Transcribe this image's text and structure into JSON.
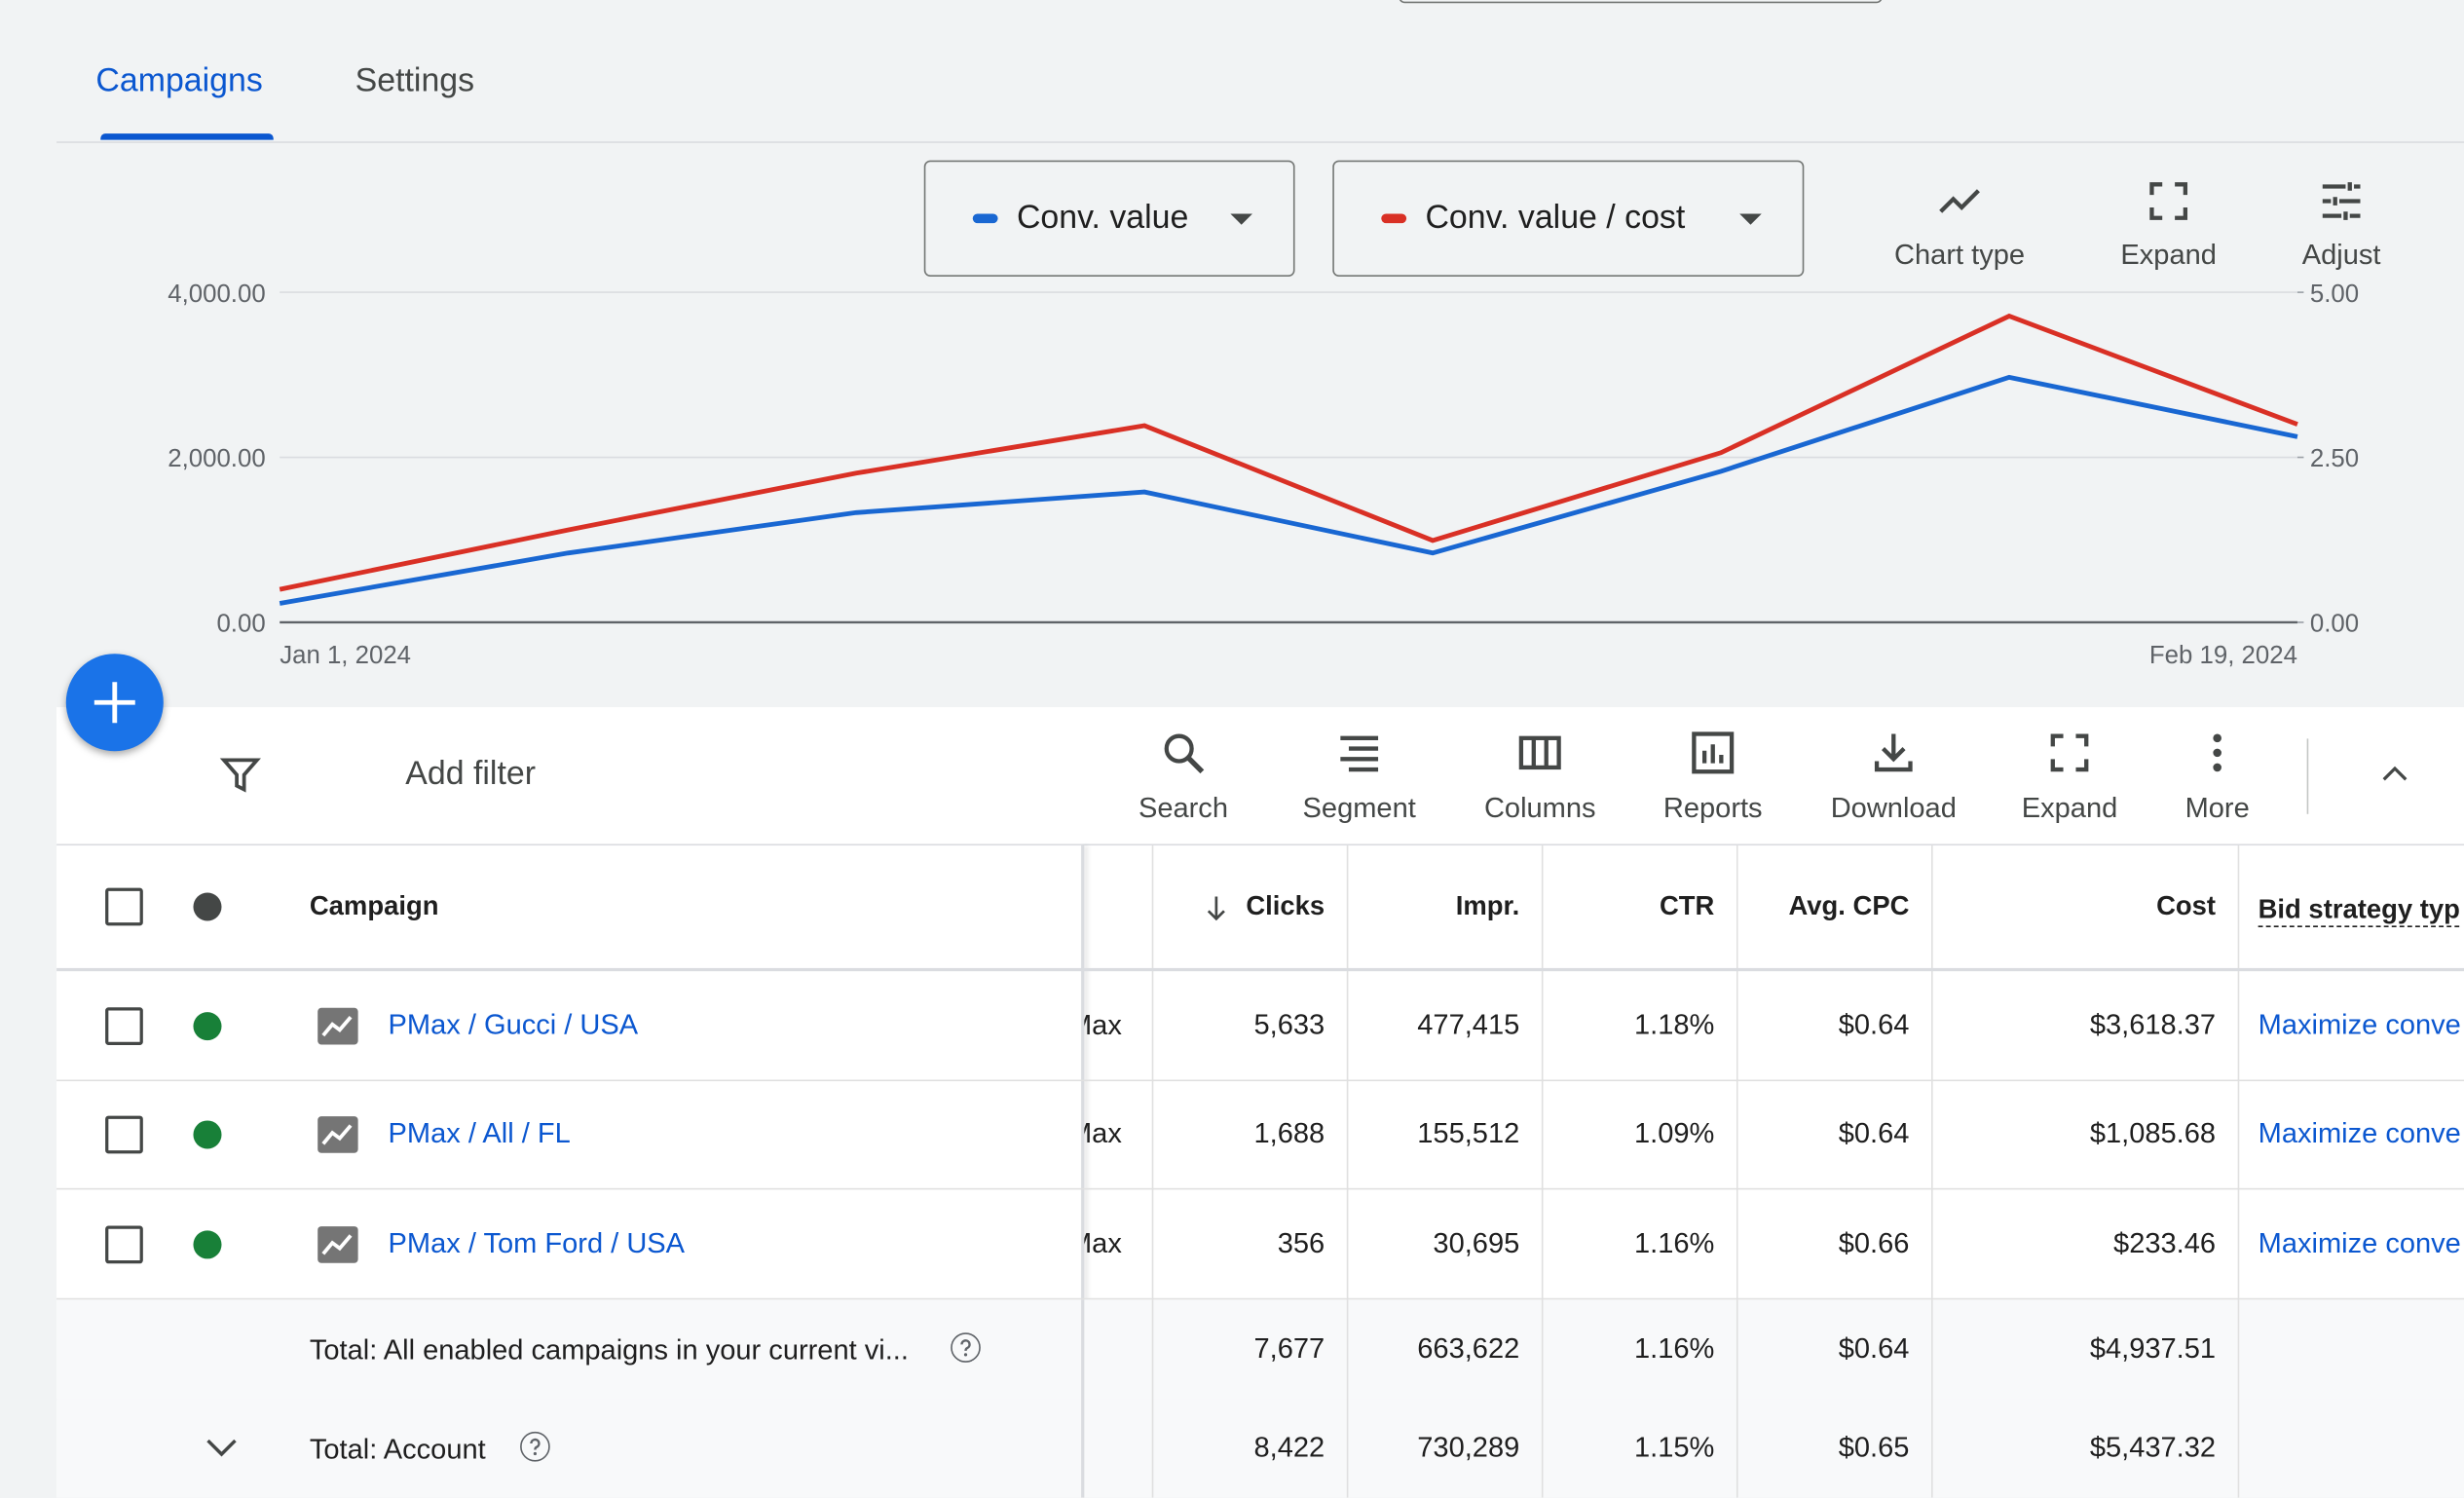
{
  "tabs": [
    "Campaigns",
    "Settings"
  ],
  "chart_controls": {
    "metrics": [
      "Conv. value",
      "Conv. value / cost"
    ],
    "buttons": [
      "Chart type",
      "Expand",
      "Adjust"
    ]
  },
  "chart_data": {
    "type": "line",
    "categories": [
      "Jan 1, 2024",
      null,
      null,
      null,
      null,
      null,
      null,
      "Feb 19, 2024"
    ],
    "series": [
      {
        "name": "Conv. value",
        "color": "#1967d2",
        "values": [
          230,
          840,
          1330,
          1580,
          840,
          1830,
          2970,
          2250
        ]
      },
      {
        "name": "Conv. value / cost",
        "color": "#d93025",
        "axis": "y2",
        "values": [
          0.5,
          1.4,
          2.26,
          2.98,
          1.24,
          2.57,
          4.64,
          3.0
        ]
      }
    ],
    "ylim": [
      0,
      4000
    ],
    "yticks": [
      {
        "value": 0,
        "label": "0.00"
      },
      {
        "value": 2000,
        "label": "2,000.00"
      },
      {
        "value": 4000,
        "label": "4,000.00"
      }
    ],
    "y2lim": [
      0,
      5
    ],
    "y2ticks": [
      {
        "value": 0,
        "label": "0.00"
      },
      {
        "value": 2.5,
        "label": "2.50"
      },
      {
        "value": 5,
        "label": "5.00"
      }
    ],
    "grid": true
  },
  "toolbar": {
    "filter": "Add filter",
    "buttons": [
      "Search",
      "Segment",
      "Columns",
      "Reports",
      "Download",
      "Expand",
      "More"
    ]
  },
  "table": {
    "columns": [
      "Campaign",
      "Clicks",
      "Impr.",
      "CTR",
      "Avg. CPC",
      "Cost",
      "Bid strategy typ"
    ],
    "rows": [
      {
        "campaign": "PMax / Gucci / USA",
        "type": "Max",
        "cells": [
          "5,633",
          "477,415",
          "1.18%",
          "$0.64",
          "$3,618.37"
        ],
        "bid": "Maximize conve"
      },
      {
        "campaign": "PMax / All / FL",
        "type": "Max",
        "cells": [
          "1,688",
          "155,512",
          "1.09%",
          "$0.64",
          "$1,085.68"
        ],
        "bid": "Maximize conve"
      },
      {
        "campaign": "PMax / Tom Ford / USA",
        "type": "Max",
        "cells": [
          "356",
          "30,695",
          "1.16%",
          "$0.66",
          "$233.46"
        ],
        "bid": "Maximize conve"
      }
    ],
    "totals": [
      {
        "label": "Total: All enabled campaigns in your current vi...",
        "cells": [
          "7,677",
          "663,622",
          "1.16%",
          "$0.64",
          "$4,937.51"
        ]
      },
      {
        "label": "Total: Account",
        "cells": [
          "8,422",
          "730,289",
          "1.15%",
          "$0.65",
          "$5,437.32"
        ]
      }
    ]
  }
}
